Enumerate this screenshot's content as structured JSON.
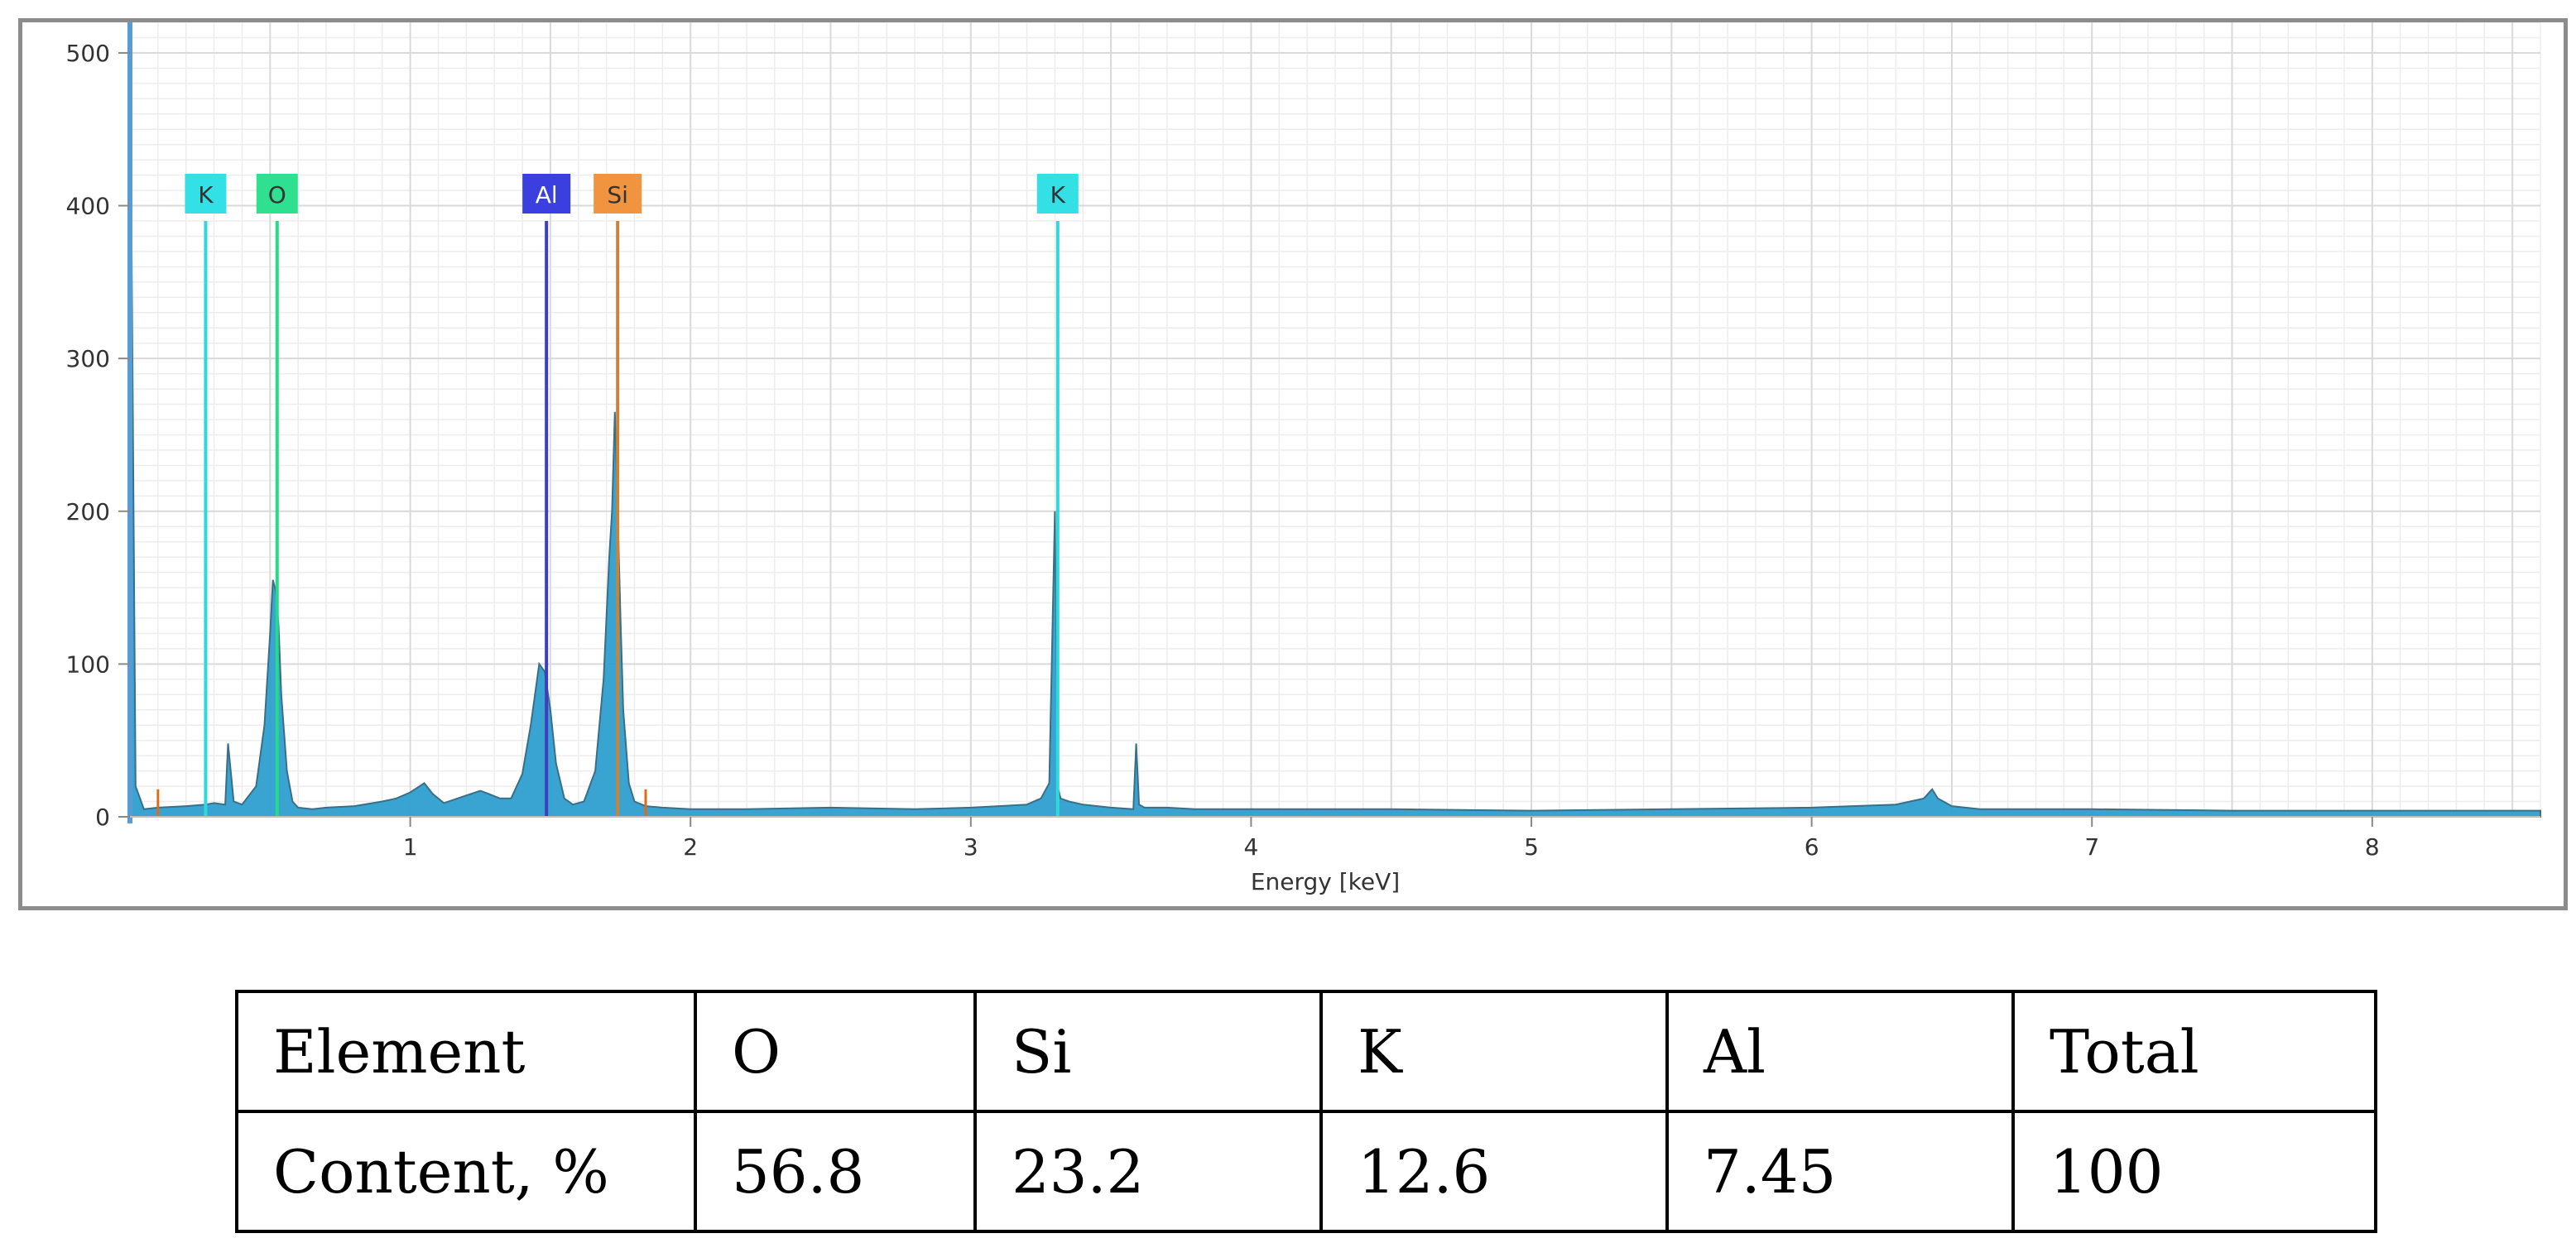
{
  "chart_data": {
    "type": "area",
    "xlabel": "Energy [keV]",
    "ylabel": "",
    "xlim": [
      0,
      8.6
    ],
    "ylim": [
      0,
      520
    ],
    "x_ticks": [
      1,
      2,
      3,
      4,
      5,
      6,
      7,
      8
    ],
    "y_ticks": [
      0,
      100,
      200,
      300,
      400,
      500
    ],
    "grid": true,
    "series": [
      {
        "x": [
          0.0,
          0.02,
          0.05,
          0.1,
          0.2,
          0.27,
          0.3,
          0.34,
          0.35,
          0.37,
          0.4,
          0.45,
          0.48,
          0.5,
          0.51,
          0.52,
          0.53,
          0.54,
          0.56,
          0.58,
          0.6,
          0.65,
          0.7,
          0.8,
          0.9,
          0.95,
          1.0,
          1.05,
          1.08,
          1.12,
          1.2,
          1.25,
          1.28,
          1.32,
          1.36,
          1.4,
          1.43,
          1.46,
          1.48,
          1.5,
          1.52,
          1.55,
          1.58,
          1.62,
          1.66,
          1.69,
          1.71,
          1.72,
          1.73,
          1.74,
          1.75,
          1.76,
          1.78,
          1.8,
          1.84,
          1.9,
          2.0,
          2.2,
          2.5,
          2.8,
          3.0,
          3.1,
          3.2,
          3.25,
          3.28,
          3.3,
          3.31,
          3.32,
          3.35,
          3.4,
          3.5,
          3.58,
          3.59,
          3.6,
          3.62,
          3.7,
          3.8,
          4.0,
          4.5,
          5.0,
          5.5,
          6.0,
          6.3,
          6.4,
          6.43,
          6.45,
          6.5,
          6.6,
          7.0,
          7.5,
          8.0,
          8.5,
          8.6
        ],
        "y": [
          520,
          20,
          5,
          6,
          7,
          8,
          9,
          8,
          48,
          10,
          8,
          20,
          60,
          120,
          155,
          148,
          125,
          80,
          30,
          10,
          6,
          5,
          6,
          7,
          10,
          12,
          16,
          22,
          15,
          9,
          14,
          17,
          15,
          12,
          12,
          28,
          60,
          100,
          95,
          70,
          35,
          12,
          8,
          10,
          30,
          90,
          170,
          200,
          265,
          200,
          130,
          70,
          22,
          10,
          7,
          6,
          5,
          5,
          6,
          5,
          6,
          7,
          8,
          12,
          22,
          200,
          20,
          12,
          10,
          8,
          6,
          5,
          48,
          8,
          6,
          6,
          5,
          5,
          5,
          4,
          5,
          6,
          8,
          12,
          18,
          12,
          7,
          5,
          5,
          4,
          4,
          4,
          4
        ]
      }
    ],
    "peak_labels": [
      {
        "label": "K",
        "energy": 0.27,
        "color": "#33e0e6",
        "line_color": "#2fd8da"
      },
      {
        "label": "O",
        "energy": 0.525,
        "color": "#2ee08f",
        "line_color": "#28d98a"
      },
      {
        "label": "Al",
        "energy": 1.486,
        "color": "#3b3fe0",
        "line_color": "#3d3fbd"
      },
      {
        "label": "Si",
        "energy": 1.74,
        "color": "#f0943f",
        "line_color": "#c9823a"
      },
      {
        "label": "K",
        "energy": 3.31,
        "color": "#33e0e6",
        "line_color": "#2fd8da"
      }
    ],
    "markers": [
      0.1,
      1.84
    ],
    "colors": {
      "fill": "#2e9fcf",
      "outline": "#3a6f86",
      "frame": "#8c8c8c",
      "axis": "#5b9bd5",
      "grid_major": "#d9d9d9",
      "grid_minor": "#ededed",
      "marker": "#e06a1a"
    }
  },
  "table": {
    "rows": [
      [
        "Element",
        "O",
        "Si",
        "K",
        "Al",
        "Total"
      ],
      [
        "Content, %",
        "56.8",
        "23.2",
        "12.6",
        "7.45",
        "100"
      ]
    ]
  }
}
